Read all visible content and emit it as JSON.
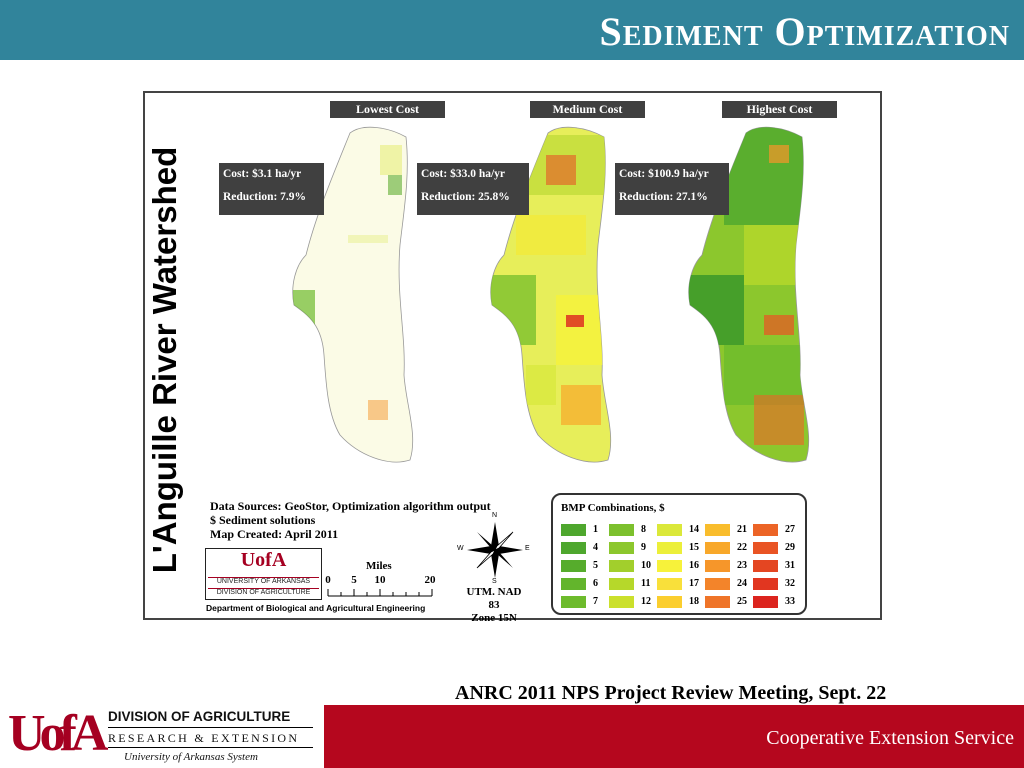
{
  "header": {
    "title": "Sediment Optimization"
  },
  "map": {
    "title": "L'Anguille River Watershed",
    "panels": [
      {
        "label": "Lowest Cost",
        "cost": "Cost: $3.1 ha/yr",
        "reduction": "Reduction: 7.9%"
      },
      {
        "label": "Medium Cost",
        "cost": "Cost: $33.0 ha/yr",
        "reduction": "Reduction: 25.8%"
      },
      {
        "label": "Highest Cost",
        "cost": "Cost: $100.9 ha/yr",
        "reduction": "Reduction: 27.1%"
      }
    ],
    "data_sources": "Data Sources: GeoStor, Optimization algorithm output",
    "solutions": "$ Sediment solutions",
    "created": "Map Created: April 2011",
    "logo": {
      "mark": "UofA",
      "line1": "UNIVERSITY OF ARKANSAS",
      "line2": "DIVISION OF AGRICULTURE"
    },
    "department": "Department of Biological and Agricultural Engineering",
    "scale": {
      "title": "Miles",
      "ticks": [
        "0",
        "5",
        "10",
        "20"
      ]
    },
    "compass": {
      "n": "N",
      "s": "S",
      "e": "E",
      "w": "W"
    },
    "projection": {
      "line1": "UTM. NAD 83",
      "line2": "Zone 15N"
    },
    "legend": {
      "title": "BMP Combinations, $",
      "columns": [
        [
          {
            "label": "1",
            "color": "#4ea72e"
          },
          {
            "label": "4",
            "color": "#4ea72e"
          },
          {
            "label": "5",
            "color": "#56ac2c"
          },
          {
            "label": "6",
            "color": "#63b52c"
          },
          {
            "label": "7",
            "color": "#6dbb2c"
          }
        ],
        [
          {
            "label": "8",
            "color": "#7cc02d"
          },
          {
            "label": "9",
            "color": "#8cc72d"
          },
          {
            "label": "10",
            "color": "#a2cf2c"
          },
          {
            "label": "11",
            "color": "#b6d82a"
          },
          {
            "label": "12",
            "color": "#cbe02c"
          }
        ],
        [
          {
            "label": "14",
            "color": "#dbe83a"
          },
          {
            "label": "15",
            "color": "#ecef3a"
          },
          {
            "label": "16",
            "color": "#f7f23a"
          },
          {
            "label": "17",
            "color": "#f9e03a"
          },
          {
            "label": "18",
            "color": "#fbce2e"
          }
        ],
        [
          {
            "label": "21",
            "color": "#f9bd2c"
          },
          {
            "label": "22",
            "color": "#f8a82a"
          },
          {
            "label": "23",
            "color": "#f6962a"
          },
          {
            "label": "24",
            "color": "#f3842a"
          },
          {
            "label": "25",
            "color": "#ef7428"
          }
        ],
        [
          {
            "label": "27",
            "color": "#ec6426"
          },
          {
            "label": "29",
            "color": "#e95424"
          },
          {
            "label": "31",
            "color": "#e44622"
          },
          {
            "label": "32",
            "color": "#e13620"
          },
          {
            "label": "33",
            "color": "#dc241e"
          }
        ]
      ]
    }
  },
  "footer": {
    "meeting": "ANRC 2011 NPS Project Review Meeting, Sept. 22",
    "service": "Cooperative Extension Service",
    "logo_mark": "UofA",
    "division": "DIVISION OF AGRICULTURE",
    "research": "RESEARCH & EXTENSION",
    "system": "University of Arkansas System"
  },
  "colors": {
    "header_bar": "#31849b",
    "footer_bar": "#b5071e",
    "brand": "#a50021"
  }
}
